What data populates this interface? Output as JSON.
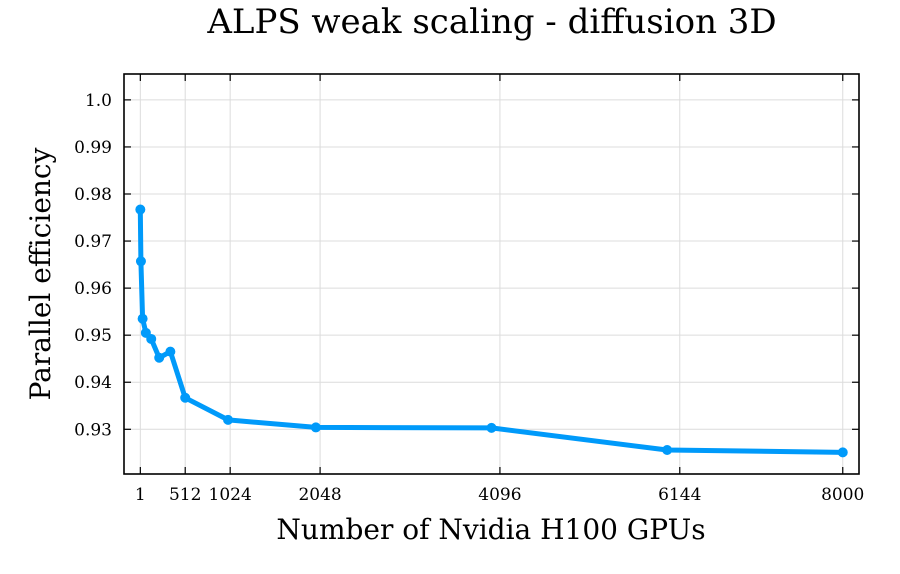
{
  "chart_data": {
    "type": "line",
    "title": "ALPS weak scaling - diffusion 3D",
    "xlabel": "Number of Nvidia H100 GPUs",
    "ylabel": "Parallel efficiency",
    "xlim": [
      -185,
      8185
    ],
    "ylim": [
      0.9205,
      1.0055
    ],
    "xticks": [
      1,
      512,
      1024,
      2048,
      4096,
      6144,
      8000
    ],
    "yticks": [
      0.93,
      0.94,
      0.95,
      0.96,
      0.97,
      0.98,
      0.99,
      1.0
    ],
    "ytick_labels": [
      "0.93",
      "0.94",
      "0.95",
      "0.96",
      "0.97",
      "0.98",
      "0.99",
      "1.0"
    ],
    "grid": true,
    "legend": "none",
    "series": [
      {
        "color": "#009AFA",
        "x": [
          1,
          8,
          27,
          64,
          125,
          216,
          343,
          512,
          1000,
          2000,
          4000,
          6000,
          8000
        ],
        "y": [
          0.9767,
          0.9657,
          0.9535,
          0.9505,
          0.9492,
          0.9452,
          0.9465,
          0.9367,
          0.932,
          0.9304,
          0.9303,
          0.9256,
          0.9251
        ]
      }
    ]
  }
}
